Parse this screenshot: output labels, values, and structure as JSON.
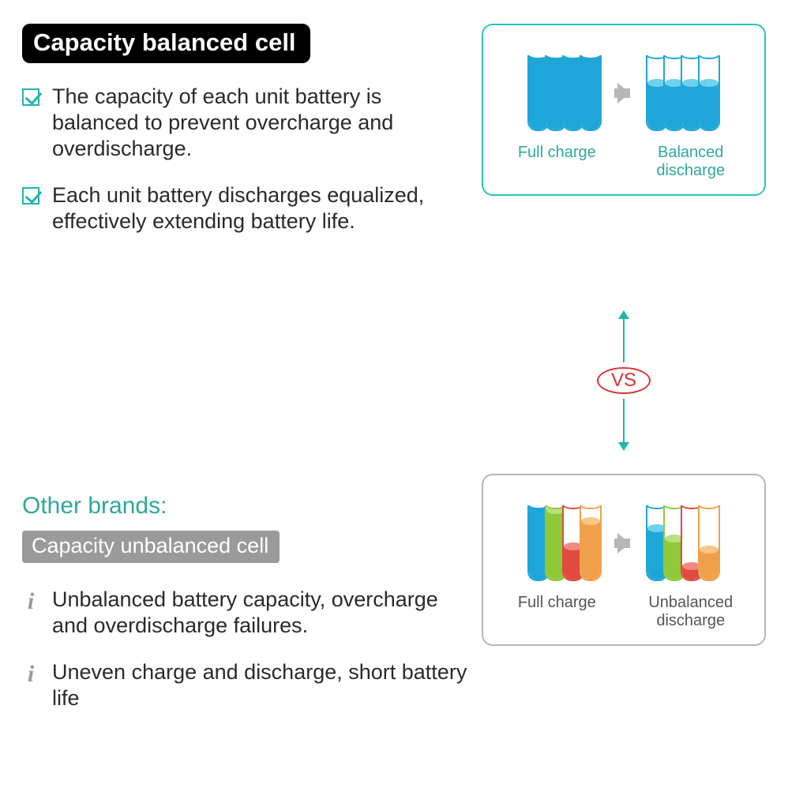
{
  "colors": {
    "teal": "#1fb5ae",
    "tealText": "#2ea79e",
    "grey": "#9a9a9a",
    "panelGrey": "#b7b7b7",
    "vsRed": "#d33",
    "cellBlue": "#1fa6d9",
    "cellBlueLight": "#6fd1ef",
    "cellGreen": "#8fc93a",
    "cellGreenLight": "#b9e07a",
    "cellRed": "#e04a3f",
    "cellRedLight": "#f28a82",
    "cellOrange": "#f0a04a",
    "cellOrangeLight": "#f7c688"
  },
  "top": {
    "title": "Capacity balanced cell",
    "bullets": [
      "The capacity of each unit battery is balanced to prevent overcharge and overdischarge.",
      "Each unit battery discharges equalized, effectively extending battery life."
    ]
  },
  "bottom": {
    "subhead": "Other brands:",
    "title": "Capacity unbalanced cell",
    "bullets": [
      "Unbalanced battery capacity, overcharge and overdischarge failures.",
      "Uneven charge and discharge, short battery life"
    ]
  },
  "vs": {
    "label": "VS"
  },
  "panelTop": {
    "labelA": "Full charge",
    "labelB": "Balanced discharge",
    "tubeHeight": 96,
    "groupA": [
      {
        "fill": 1.0,
        "color": "blue"
      },
      {
        "fill": 1.0,
        "color": "blue"
      },
      {
        "fill": 1.0,
        "color": "blue"
      },
      {
        "fill": 1.0,
        "color": "blue"
      }
    ],
    "groupB": [
      {
        "fill": 0.62,
        "color": "blue"
      },
      {
        "fill": 0.62,
        "color": "blue"
      },
      {
        "fill": 0.62,
        "color": "blue"
      },
      {
        "fill": 0.62,
        "color": "blue"
      }
    ]
  },
  "panelBottom": {
    "labelA": "Full charge",
    "labelB": "Unbalanced discharge",
    "tubeHeight": 96,
    "groupA": [
      {
        "fill": 1.0,
        "color": "blue"
      },
      {
        "fill": 0.92,
        "color": "green"
      },
      {
        "fill": 0.45,
        "color": "red"
      },
      {
        "fill": 0.78,
        "color": "orange"
      }
    ],
    "groupB": [
      {
        "fill": 0.68,
        "color": "blue"
      },
      {
        "fill": 0.55,
        "color": "green"
      },
      {
        "fill": 0.18,
        "color": "red"
      },
      {
        "fill": 0.4,
        "color": "orange"
      }
    ]
  }
}
